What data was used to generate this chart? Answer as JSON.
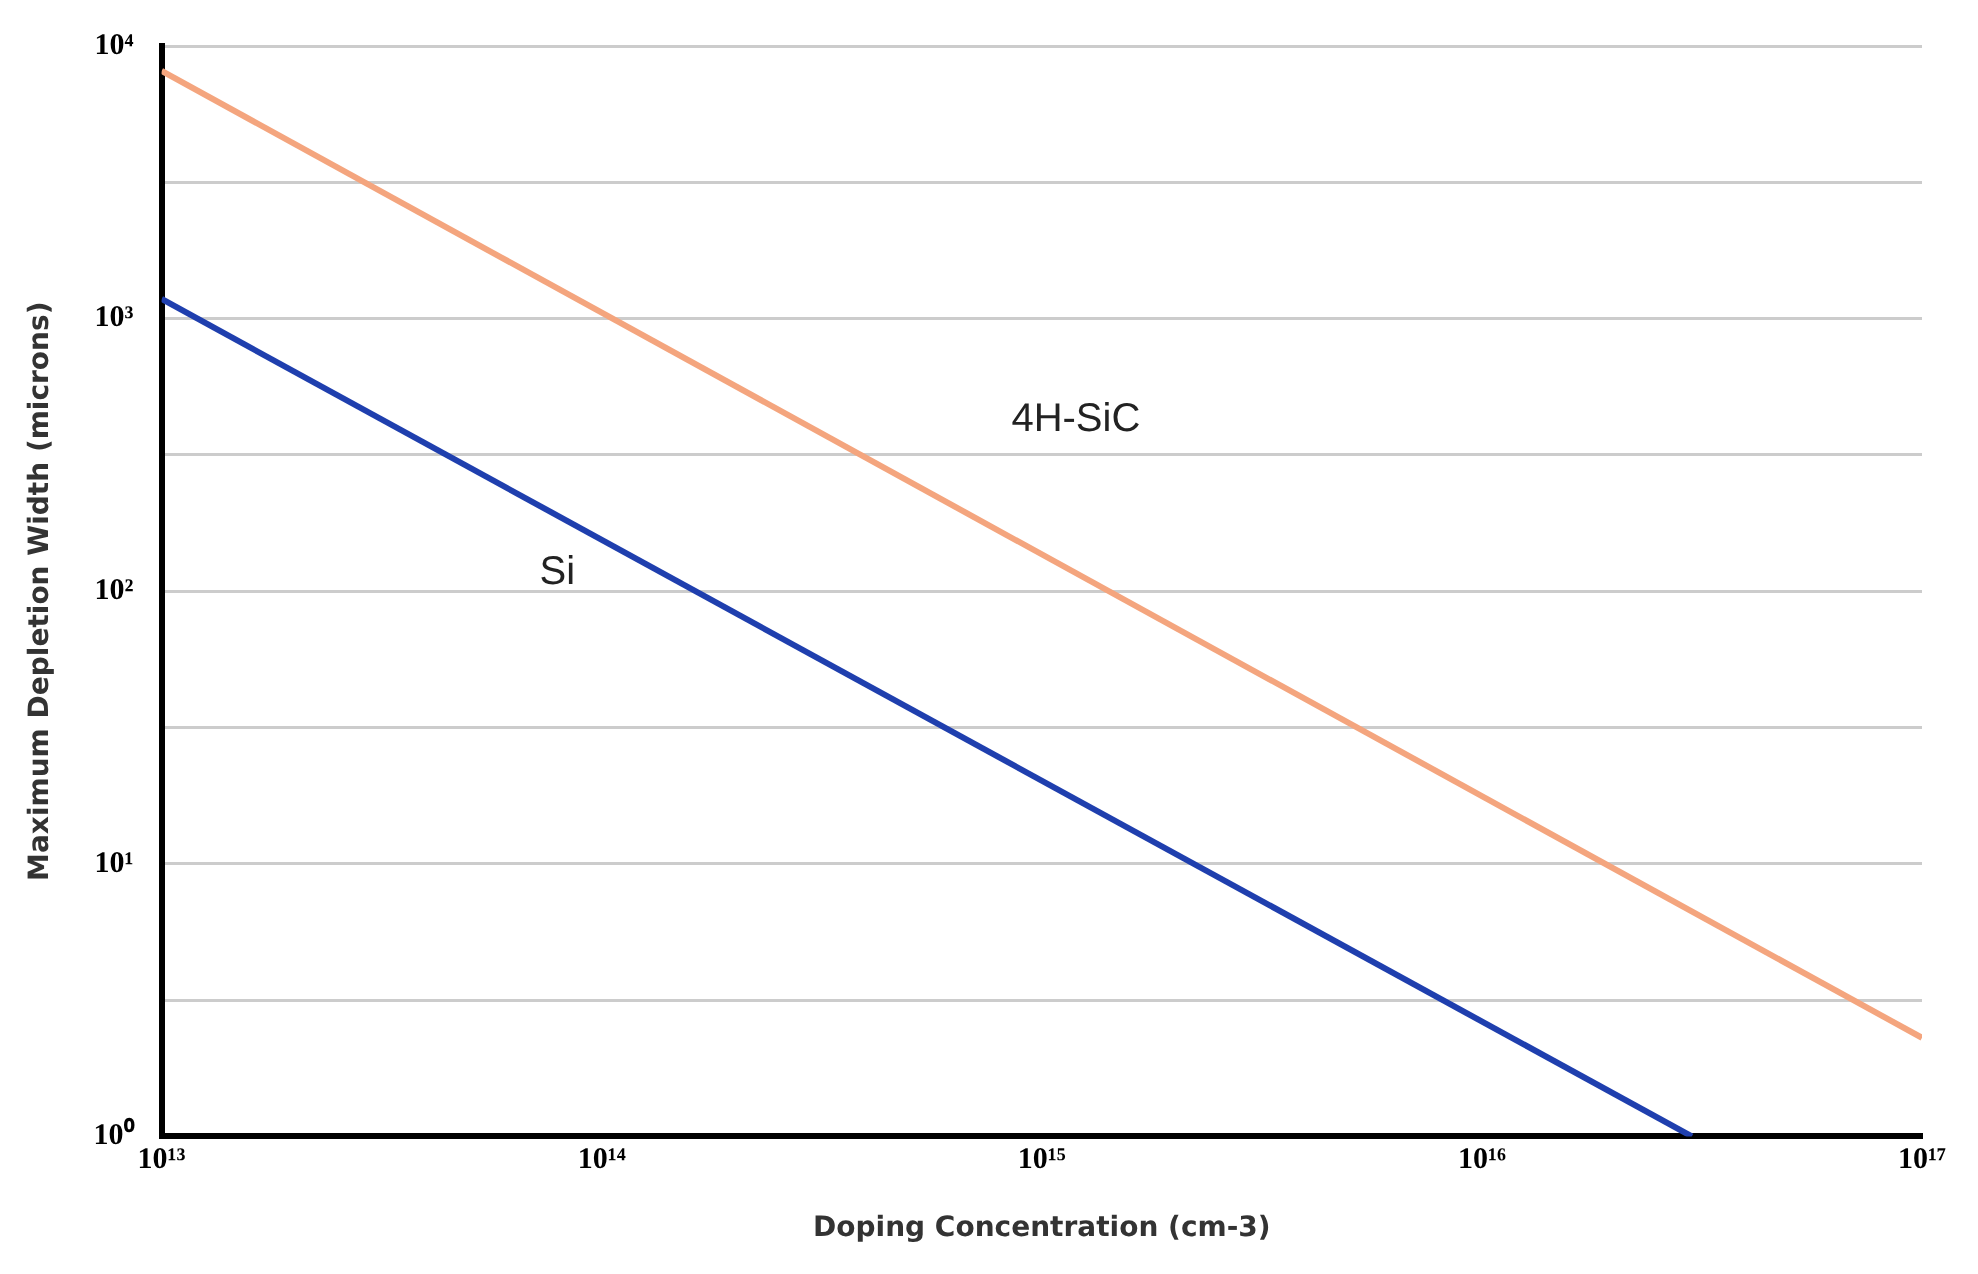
{
  "chart_data": {
    "type": "line",
    "xlabel": "Doping Concentration (cm-3)",
    "ylabel": "Maximum Depletion Width (microns)",
    "log": "xy",
    "grid": "y",
    "legend": false,
    "marker": "none",
    "line_style": "solid",
    "xlim": [
      10000000000000.0,
      1e+17
    ],
    "xticks": [
      {
        "value": 10000000000000.0,
        "label": "10¹³"
      },
      {
        "value": 100000000000000.0,
        "label": "10¹⁴"
      },
      {
        "value": 1000000000000000.0,
        "label": "10¹⁵"
      },
      {
        "value": 1e+16,
        "label": "10¹⁶"
      },
      {
        "value": 1e+17,
        "label": "10¹⁷"
      }
    ],
    "ylim": [
      1,
      10000
    ],
    "yticks": [
      {
        "value": 1,
        "label": "10⁰"
      },
      {
        "value": 3.16,
        "label": null
      },
      {
        "value": 10,
        "label": "10¹"
      },
      {
        "value": 31.6,
        "label": null
      },
      {
        "value": 100,
        "label": "10²"
      },
      {
        "value": 316,
        "label": null
      },
      {
        "value": 1000,
        "label": "10³"
      },
      {
        "value": 3160,
        "label": null
      },
      {
        "value": 10000,
        "label": "10⁴"
      }
    ],
    "series": [
      {
        "name": "4H-SiC",
        "color": "#f4a57e",
        "x": [
          10000000000000.0,
          1e+17
        ],
        "values": [
          8100,
          2.3
        ]
      },
      {
        "name": "Si",
        "color": "#1f3fae",
        "x": [
          10000000000000.0,
          3e+16
        ],
        "values": [
          1180,
          1
        ]
      }
    ]
  }
}
